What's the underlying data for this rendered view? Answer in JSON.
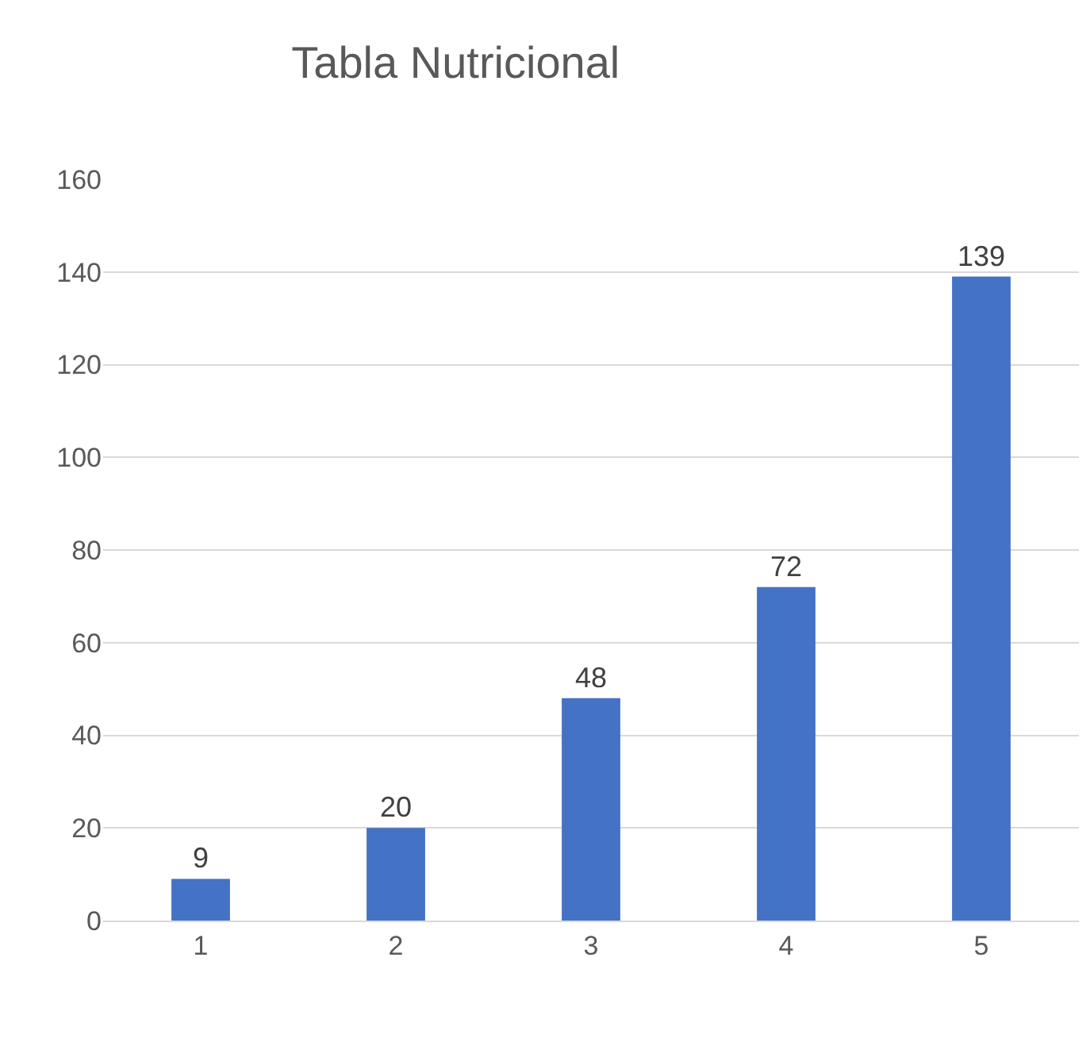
{
  "chart_data": {
    "type": "bar",
    "title": "Tabla Nutricional",
    "categories": [
      "1",
      "2",
      "3",
      "4",
      "5"
    ],
    "values": [
      9,
      20,
      48,
      72,
      139
    ],
    "color": "#4472c4",
    "ylim": [
      0,
      160
    ],
    "yticks": [
      0,
      20,
      40,
      60,
      80,
      100,
      120,
      140,
      160
    ],
    "grid": "y",
    "data_labels": true,
    "legend": false
  }
}
